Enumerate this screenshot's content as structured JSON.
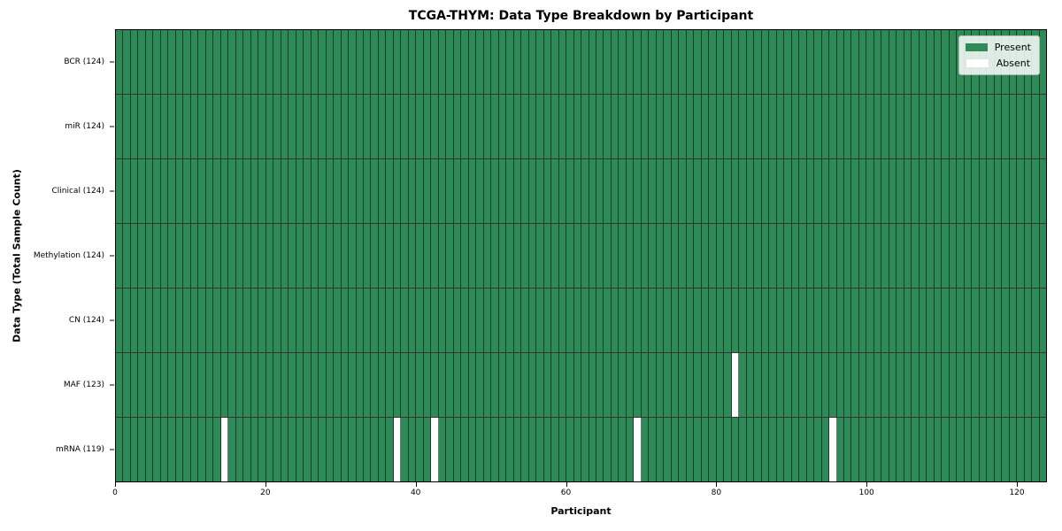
{
  "chart_data": {
    "type": "heatmap",
    "title": "TCGA-THYM: Data Type Breakdown by Participant",
    "xlabel": "Participant",
    "ylabel": "Data Type (Total Sample Count)",
    "xlim": [
      0,
      124
    ],
    "n_participants": 124,
    "x_ticks": [
      0,
      20,
      40,
      60,
      80,
      100,
      120
    ],
    "grid": "cell-borders-on",
    "legend_position": "upper-right-inside",
    "rows": [
      {
        "label": "BCR (124)",
        "present_count": 124,
        "absent_participants": []
      },
      {
        "label": "miR (124)",
        "present_count": 124,
        "absent_participants": []
      },
      {
        "label": "Clinical (124)",
        "present_count": 124,
        "absent_participants": []
      },
      {
        "label": "Methylation (124)",
        "present_count": 124,
        "absent_participants": []
      },
      {
        "label": "CN (124)",
        "present_count": 124,
        "absent_participants": []
      },
      {
        "label": "MAF (123)",
        "present_count": 123,
        "absent_participants": [
          82
        ]
      },
      {
        "label": "mRNA (119)",
        "present_count": 119,
        "absent_participants": [
          14,
          37,
          42,
          69,
          95
        ]
      }
    ],
    "legend": [
      {
        "label": "Present",
        "color": "#2e8b57"
      },
      {
        "label": "Absent",
        "color": "#ffffff"
      }
    ],
    "colors": {
      "present": "#2e8b57",
      "absent": "#ffffff",
      "cell_border": "rgba(0,0,0,0.55)",
      "row_border": "rgba(0,0,0,0.8)",
      "spine": "#000000"
    }
  }
}
